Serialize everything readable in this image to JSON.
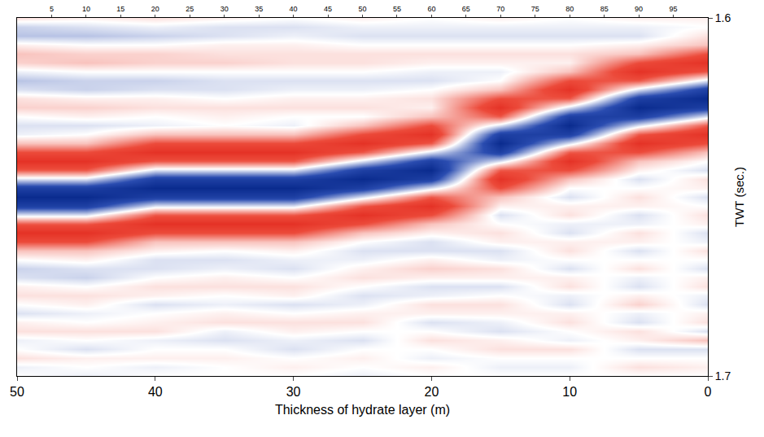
{
  "chart_data": {
    "type": "heatmap",
    "xlabel": "Thickness of hydrate layer (m)",
    "ylabel": "TWT (sec.)",
    "x": [
      50,
      45,
      40,
      35,
      30,
      25,
      20,
      15,
      10,
      5,
      0
    ],
    "y": [
      1.6,
      1.6025,
      1.605,
      1.6075,
      1.61,
      1.6125,
      1.615,
      1.6175,
      1.62,
      1.6225,
      1.625,
      1.6275,
      1.63,
      1.6325,
      1.635,
      1.6375,
      1.64,
      1.6425,
      1.645,
      1.6475,
      1.65,
      1.6525,
      1.655,
      1.6575,
      1.66,
      1.6625,
      1.665,
      1.6675,
      1.67,
      1.6725,
      1.675,
      1.6775,
      1.68,
      1.6825,
      1.685,
      1.6875,
      1.69,
      1.6925,
      1.695,
      1.6975,
      1.7
    ],
    "cells": [
      [
        0.1,
        -0.15,
        -0.2,
        0.05,
        0.2,
        0.15,
        -0.05,
        -0.2,
        -0.1,
        0.1,
        0.15,
        0,
        -0.1,
        -0.05,
        0.2,
        0.6,
        0.85,
        0.55,
        -0.1,
        -0.75,
        -1,
        -0.75,
        -0.1,
        0.55,
        0.85,
        0.6,
        0.2,
        0,
        -0.15,
        -0.1,
        0.05,
        0.1,
        0,
        -0.1,
        0.05,
        0.1,
        -0.05,
        0,
        0.1,
        -0.05,
        0
      ],
      [
        0.05,
        -0.1,
        -0.2,
        0,
        0.15,
        0.2,
        0,
        -0.15,
        -0.15,
        0.05,
        0.15,
        0.05,
        -0.1,
        0,
        0.2,
        0.6,
        0.85,
        0.55,
        -0.1,
        -0.75,
        -1,
        -0.75,
        -0.1,
        0.55,
        0.85,
        0.6,
        0.2,
        0.05,
        -0.1,
        -0.15,
        0,
        0.1,
        0.05,
        -0.05,
        0,
        0.1,
        0,
        -0.1,
        0.05,
        0,
        -0.05
      ],
      [
        0.1,
        -0.05,
        -0.15,
        0,
        0.15,
        0.15,
        0,
        -0.15,
        -0.1,
        0.05,
        0.1,
        0,
        -0.05,
        0.2,
        0.6,
        0.85,
        0.55,
        -0.1,
        -0.75,
        -1,
        -0.75,
        -0.1,
        0.55,
        0.85,
        0.6,
        0.2,
        0.05,
        -0.1,
        -0.1,
        0,
        0.1,
        0.05,
        -0.1,
        0,
        0.05,
        0.1,
        -0.05,
        0,
        0.05,
        -0.05,
        0
      ],
      [
        0.05,
        -0.1,
        -0.1,
        0.05,
        0.1,
        0.15,
        0,
        -0.1,
        -0.1,
        0,
        0.1,
        0.05,
        0,
        0.2,
        0.6,
        0.85,
        0.55,
        -0.1,
        -0.75,
        -1,
        -0.75,
        -0.1,
        0.55,
        0.85,
        0.6,
        0.2,
        0,
        -0.1,
        -0.05,
        0.05,
        0.1,
        0,
        -0.05,
        0.05,
        0.1,
        -0.05,
        -0.1,
        0,
        0.05,
        0,
        0
      ],
      [
        0,
        -0.1,
        -0.05,
        0.05,
        0.1,
        0.1,
        0,
        -0.1,
        -0.05,
        0.05,
        0.1,
        0,
        -0.05,
        0.2,
        0.6,
        0.85,
        0.55,
        -0.1,
        -0.75,
        -1,
        -0.75,
        -0.1,
        0.55,
        0.85,
        0.6,
        0.2,
        0.05,
        -0.05,
        -0.1,
        0,
        0.1,
        0.05,
        -0.1,
        0,
        0.1,
        0.05,
        -0.05,
        -0.1,
        0,
        0.05,
        0
      ],
      [
        0.05,
        -0.05,
        -0.1,
        0,
        0.1,
        0.1,
        0,
        -0.1,
        -0.05,
        0.05,
        0.1,
        0,
        0.2,
        0.6,
        0.85,
        0.55,
        -0.1,
        -0.75,
        -1,
        -0.75,
        -0.1,
        0.55,
        0.85,
        0.6,
        0.2,
        0,
        -0.1,
        -0.05,
        0.05,
        0.1,
        0,
        -0.1,
        -0.05,
        0.05,
        0.1,
        0,
        -0.1,
        0,
        0.05,
        0,
        -0.05
      ],
      [
        0,
        -0.05,
        -0.1,
        0,
        0.1,
        0.05,
        -0.05,
        -0.1,
        0,
        0.1,
        0.05,
        0.2,
        0.6,
        0.85,
        0.55,
        -0.1,
        -0.75,
        -1,
        -0.75,
        -0.1,
        0.55,
        0.85,
        0.6,
        0.2,
        0.05,
        -0.1,
        -0.1,
        0.05,
        0.15,
        0.05,
        -0.1,
        -0.05,
        0.1,
        0.05,
        -0.1,
        0,
        0.1,
        0,
        -0.05,
        0.05,
        0
      ],
      [
        0.05,
        -0.05,
        -0.1,
        0,
        0.1,
        0.05,
        -0.05,
        0,
        0.2,
        0.6,
        0.85,
        0.55,
        -0.1,
        -0.75,
        -1,
        -0.75,
        -0.1,
        0.55,
        0.85,
        0.6,
        0.2,
        0.05,
        -0.1,
        0,
        0.1,
        0.05,
        -0.1,
        -0.05,
        0.1,
        0.05,
        -0.1,
        0,
        0.1,
        0.05,
        -0.05,
        -0.1,
        0.05,
        0.1,
        0,
        -0.05,
        0
      ],
      [
        0,
        -0.05,
        -0.1,
        0,
        0.1,
        0.05,
        0.2,
        0.6,
        0.85,
        0.55,
        -0.1,
        -0.75,
        -1,
        -0.75,
        -0.1,
        0.55,
        0.85,
        0.6,
        0.2,
        0,
        -0.1,
        0.05,
        0.1,
        -0.05,
        -0.1,
        0.05,
        0.1,
        0,
        -0.1,
        0.05,
        0.1,
        -0.05,
        -0.1,
        0.05,
        0.1,
        0,
        -0.05,
        0.1,
        0,
        -0.05,
        0
      ],
      [
        0.05,
        -0.05,
        -0.1,
        0.05,
        0.2,
        0.6,
        0.85,
        0.55,
        -0.1,
        -0.75,
        -1,
        -0.75,
        -0.1,
        0.55,
        0.85,
        0.6,
        0.2,
        0.05,
        -0.1,
        0,
        0.1,
        0.05,
        -0.1,
        -0.05,
        0.1,
        0.05,
        -0.1,
        0,
        0.1,
        -0.05,
        -0.1,
        0.05,
        0.15,
        -0.05,
        -0.1,
        0.1,
        0.05,
        -0.1,
        0,
        0.1,
        0
      ],
      [
        0.05,
        0,
        0.1,
        0.2,
        0.6,
        0.85,
        0.55,
        -0.1,
        -0.75,
        -1,
        -0.75,
        -0.1,
        0.55,
        0.85,
        0.6,
        0.2,
        0,
        -0.1,
        0.1,
        0.05,
        -0.1,
        0,
        0.1,
        0.05,
        -0.1,
        -0.05,
        0.1,
        0,
        -0.1,
        0.05,
        0.1,
        -0.05,
        -0.1,
        0.05,
        0.1,
        -0.1,
        0.2,
        -0.1,
        0,
        0.05,
        0
      ]
    ],
    "zlim": [
      -1,
      1
    ],
    "xlim": [
      50,
      0
    ],
    "xticks": [
      50,
      40,
      30,
      20,
      10,
      0
    ],
    "ylim": [
      1.7,
      1.6
    ],
    "yticks": [
      1.6,
      1.7
    ],
    "x2lim": [
      0,
      100
    ],
    "x2ticks": [
      5,
      10,
      15,
      20,
      25,
      30,
      35,
      40,
      45,
      50,
      55,
      60,
      65,
      70,
      75,
      80,
      85,
      90,
      95
    ],
    "grid": false
  }
}
